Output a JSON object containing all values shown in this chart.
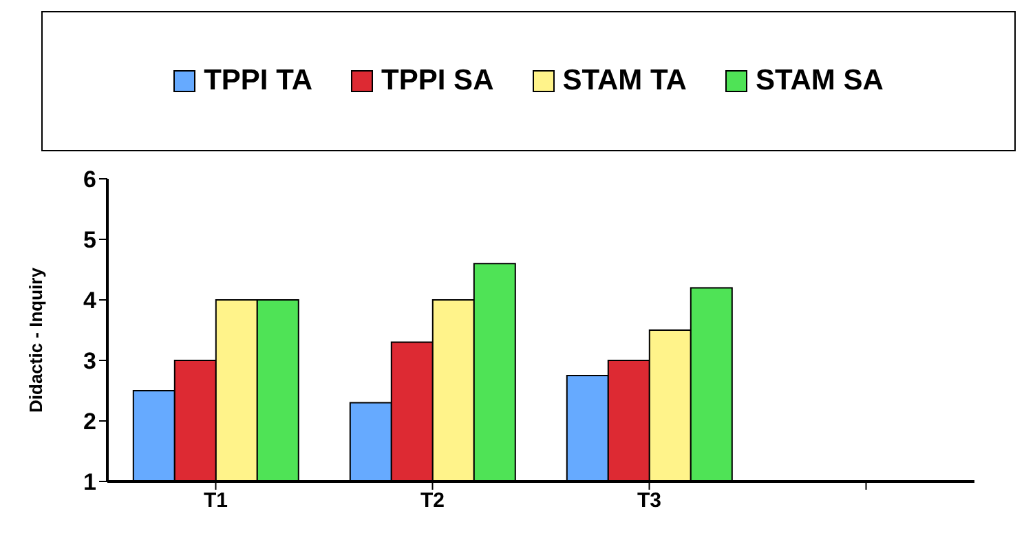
{
  "chart_data": {
    "type": "bar",
    "ylabel": "Didactic - Inquiry",
    "categories": [
      "T1",
      "T2",
      "T3",
      null
    ],
    "series": [
      {
        "name": "TPPI TA",
        "color": "#66aaff",
        "values": [
          2.5,
          2.3,
          2.75,
          null
        ]
      },
      {
        "name": "TPPI SA",
        "color": "#dd2a33",
        "values": [
          3.0,
          3.3,
          3.0,
          null
        ]
      },
      {
        "name": "STAM TA",
        "color": "#fff38a",
        "values": [
          4.0,
          4.0,
          3.5,
          null
        ]
      },
      {
        "name": "STAM SA",
        "color": "#4fe356",
        "values": [
          4.0,
          4.6,
          4.2,
          null
        ]
      }
    ],
    "ylim": [
      1,
      6
    ],
    "yticks": [
      1,
      2,
      3,
      4,
      5,
      6
    ],
    "legend": "top"
  }
}
